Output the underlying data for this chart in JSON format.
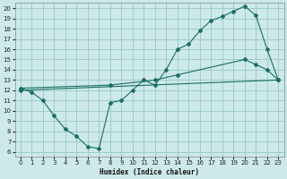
{
  "bg_color": "#cde9e9",
  "grid_color": "#a0cccc",
  "line_color": "#1a6e65",
  "xlabel": "Humidex (Indice chaleur)",
  "xlim": [
    -0.5,
    23.5
  ],
  "ylim": [
    5.5,
    20.5
  ],
  "yticks": [
    6,
    7,
    8,
    9,
    10,
    11,
    12,
    13,
    14,
    15,
    16,
    17,
    18,
    19,
    20
  ],
  "xticks": [
    0,
    1,
    2,
    3,
    4,
    5,
    6,
    7,
    8,
    9,
    10,
    11,
    12,
    13,
    14,
    15,
    16,
    17,
    18,
    19,
    20,
    21,
    22,
    23
  ],
  "line1_x": [
    0,
    1,
    2,
    3,
    4,
    5,
    6,
    7,
    8,
    9,
    10,
    11,
    12,
    13,
    14,
    15,
    16,
    17,
    18,
    19,
    20,
    21,
    22,
    23
  ],
  "line1_y": [
    12.2,
    11.8,
    11.0,
    9.5,
    8.2,
    7.5,
    6.5,
    6.3,
    10.8,
    11.0,
    12.0,
    13.0,
    12.5,
    14.0,
    16.0,
    16.5,
    17.8,
    18.8,
    19.2,
    19.7,
    20.2,
    19.3,
    16.0,
    13.0
  ],
  "line2_x": [
    0,
    8,
    12,
    14,
    20,
    21,
    22,
    23
  ],
  "line2_y": [
    12.2,
    12.5,
    13.0,
    13.5,
    15.0,
    14.5,
    14.0,
    13.0
  ],
  "line3_x": [
    0,
    23
  ],
  "line3_y": [
    12.0,
    13.0
  ]
}
